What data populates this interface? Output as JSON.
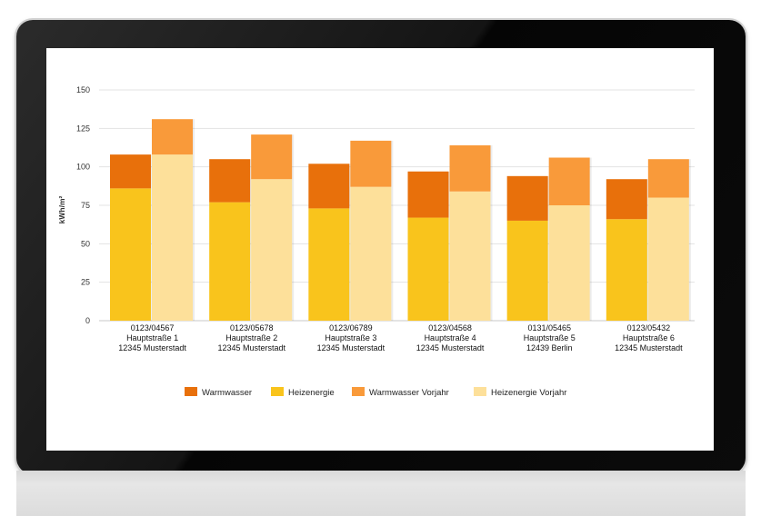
{
  "chart_data": {
    "type": "bar",
    "ylabel": "kWh/m²",
    "ylim": [
      0,
      150
    ],
    "yticks": [
      0,
      25,
      50,
      75,
      100,
      125,
      150
    ],
    "grid": true,
    "legend_position": "bottom",
    "categories": [
      [
        "0123/04567",
        "Hauptstraße 1",
        "12345 Musterstadt"
      ],
      [
        "0123/05678",
        "Hauptstraße 2",
        "12345 Musterstadt"
      ],
      [
        "0123/06789",
        "Hauptstraße 3",
        "12345 Musterstadt"
      ],
      [
        "0123/04568",
        "Hauptstraße 4",
        "12345 Musterstadt"
      ],
      [
        "0131/05465",
        "Hauptstraße 5",
        "12439 Berlin"
      ],
      [
        "0123/05432",
        "Hauptstraße 6",
        "12345 Musterstadt"
      ]
    ],
    "stacks": [
      {
        "name": "current",
        "series": [
          "Heizenergie",
          "Warmwasser"
        ]
      },
      {
        "name": "previous",
        "series": [
          "Heizenergie Vorjahr",
          "Warmwasser Vorjahr"
        ]
      }
    ],
    "series": [
      {
        "name": "Warmwasser",
        "color": "#e8700b",
        "stack": "current",
        "values": [
          22,
          28,
          29,
          30,
          29,
          26
        ]
      },
      {
        "name": "Heizenergie",
        "color": "#f9c41c",
        "stack": "current",
        "values": [
          86,
          77,
          73,
          67,
          65,
          66
        ]
      },
      {
        "name": "Warmwasser Vorjahr",
        "color": "#f99a3a",
        "stack": "previous",
        "values": [
          23,
          29,
          30,
          30,
          31,
          25
        ]
      },
      {
        "name": "Heizenergie Vorjahr",
        "color": "#fde09a",
        "stack": "previous",
        "values": [
          108,
          92,
          87,
          84,
          75,
          80
        ]
      }
    ]
  }
}
